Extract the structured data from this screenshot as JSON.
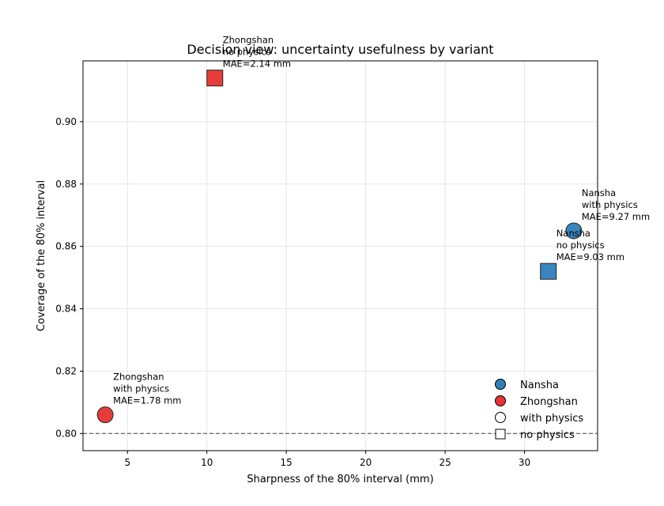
{
  "chart_data": {
    "type": "scatter",
    "title": "Decision view: uncertainty usefulness by variant",
    "xlabel": "Sharpness of the 80% interval (mm)",
    "ylabel": "Coverage of the 80% interval",
    "xlim": [
      2.2,
      34.6
    ],
    "ylim": [
      0.7945,
      0.9195
    ],
    "xticks": [
      5,
      10,
      15,
      20,
      25,
      30
    ],
    "yticks": [
      0.8,
      0.82,
      0.84,
      0.86,
      0.88,
      0.9
    ],
    "ytick_labels": [
      "0.80",
      "0.82",
      "0.84",
      "0.86",
      "0.88",
      "0.90"
    ],
    "grid": true,
    "reference_line": {
      "y": 0.8,
      "style": "dashed"
    },
    "colors": {
      "Nansha": "#2e7fba",
      "Zhongshan": "#e63232"
    },
    "points": [
      {
        "site": "Zhongshan",
        "physics": "no physics",
        "x": 10.5,
        "y": 0.914,
        "label": [
          "Zhongshan",
          "no physics",
          "MAE=2.14 mm"
        ]
      },
      {
        "site": "Nansha",
        "physics": "with physics",
        "x": 33.1,
        "y": 0.865,
        "label": [
          "Nansha",
          "with physics",
          "MAE=9.27 mm"
        ]
      },
      {
        "site": "Nansha",
        "physics": "no physics",
        "x": 31.5,
        "y": 0.852,
        "label": [
          "Nansha",
          "no physics",
          "MAE=9.03 mm"
        ]
      },
      {
        "site": "Zhongshan",
        "physics": "with physics",
        "x": 3.6,
        "y": 0.806,
        "label": [
          "Zhongshan",
          "with physics",
          "MAE=1.78 mm"
        ]
      }
    ],
    "legend": {
      "position": "lower-right",
      "entries": [
        {
          "label": "Nansha",
          "marker": "circle",
          "color": "#2e7fba"
        },
        {
          "label": "Zhongshan",
          "marker": "circle",
          "color": "#e63232"
        },
        {
          "label": "with physics",
          "marker": "circle",
          "color": "#ffffff"
        },
        {
          "label": "no physics",
          "marker": "square",
          "color": "#ffffff"
        }
      ]
    }
  }
}
